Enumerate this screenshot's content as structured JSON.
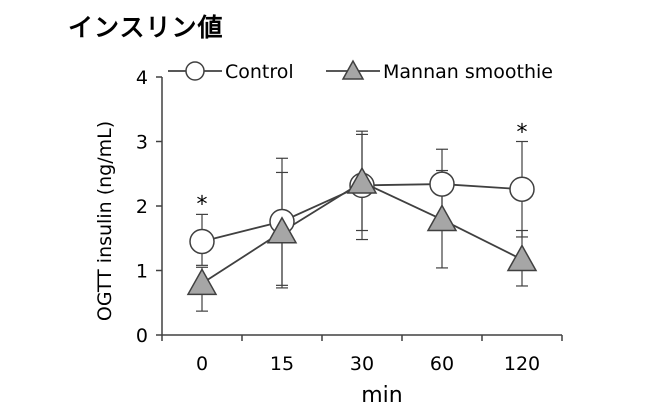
{
  "page": {
    "title": "インスリン値"
  },
  "chart_data": {
    "type": "line",
    "title": "インスリン値",
    "xlabel": "min",
    "ylabel": "OGTT insulin (ng/mL)",
    "categories": [
      "0",
      "15",
      "30",
      "60",
      "120"
    ],
    "ylim": [
      0,
      4
    ],
    "yticks": [
      0,
      1,
      2,
      3,
      4
    ],
    "grid": false,
    "legend_position": "top",
    "series": [
      {
        "name": "Control",
        "marker": "circle",
        "marker_color": "#ffffff",
        "values": [
          1.45,
          1.76,
          2.32,
          2.34,
          2.26
        ],
        "err_upper": [
          1.87,
          2.74,
          3.16,
          2.88,
          3.0
        ],
        "err_lower": [
          1.08,
          0.73,
          1.48,
          1.82,
          1.52
        ]
      },
      {
        "name": "Mannan smoothie",
        "marker": "triangle",
        "marker_color": "#a6a6a6",
        "values": [
          0.8,
          1.6,
          2.37,
          1.79,
          1.17
        ],
        "err_upper": [
          1.05,
          2.52,
          3.11,
          2.55,
          1.62
        ],
        "err_lower": [
          0.37,
          0.77,
          1.62,
          1.04,
          0.76
        ]
      }
    ],
    "annotations": [
      {
        "category": "0",
        "value": 2.1,
        "text": "*"
      },
      {
        "category": "120",
        "value": 3.22,
        "text": "*"
      }
    ]
  }
}
